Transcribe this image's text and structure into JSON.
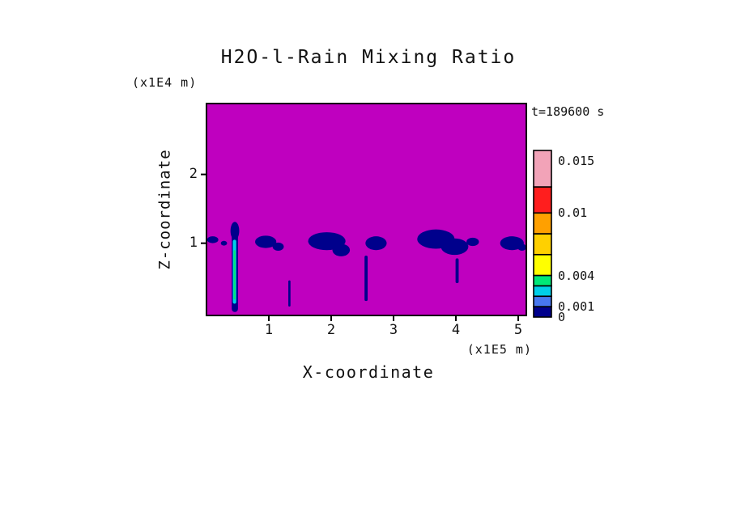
{
  "page": {
    "background": "#ffffff",
    "text_color": "#111111"
  },
  "chart_data": {
    "type": "heatmap",
    "title": "H2O-l-Rain Mixing Ratio",
    "time_label": "t=189600 s",
    "x_axis": {
      "label": "X-coordinate",
      "units": "(x1E5 m)",
      "ticks": [
        1,
        2,
        3,
        4,
        5
      ],
      "range": [
        0,
        5.13
      ]
    },
    "z_axis": {
      "label": "Z-coordinate",
      "units": "(x1E4 m)",
      "ticks": [
        1,
        2
      ],
      "range": [
        -0.05,
        3.03
      ]
    },
    "field_background_color": "#BF00BF",
    "cell_color": "#00008C",
    "colorbar": {
      "range": [
        0,
        0.016
      ],
      "segments": [
        {
          "from": 0,
          "to": 0.001,
          "color": "#00008C"
        },
        {
          "from": 0.001,
          "to": 0.002,
          "color": "#4878F0"
        },
        {
          "from": 0.002,
          "to": 0.003,
          "color": "#00CFE8"
        },
        {
          "from": 0.003,
          "to": 0.004,
          "color": "#00E878"
        },
        {
          "from": 0.004,
          "to": 0.006,
          "color": "#FFFF00"
        },
        {
          "from": 0.006,
          "to": 0.008,
          "color": "#FFD000"
        },
        {
          "from": 0.008,
          "to": 0.01,
          "color": "#FFA000"
        },
        {
          "from": 0.01,
          "to": 0.0125,
          "color": "#FF1E1E"
        },
        {
          "from": 0.0125,
          "to": 0.016,
          "color": "#F2A3B8"
        }
      ],
      "tick_labels": [
        {
          "value": 0.015,
          "label": "0.015"
        },
        {
          "value": 0.01,
          "label": "0.01"
        },
        {
          "value": 0.004,
          "label": "0.004"
        },
        {
          "value": 0.001,
          "label": "0.001"
        },
        {
          "value": 0,
          "label": "0"
        }
      ]
    },
    "features": [
      {
        "shape": "ellipse",
        "x": 0.1,
        "z": 1.05,
        "rx": 0.09,
        "rz": 0.05
      },
      {
        "shape": "ellipse",
        "x": 0.28,
        "z": 1.0,
        "rx": 0.05,
        "rz": 0.035
      },
      {
        "shape": "ellipse",
        "x": 0.455,
        "z": 1.18,
        "rx": 0.07,
        "rz": 0.13
      },
      {
        "shape": "rect",
        "x": 0.455,
        "z_top": 1.3,
        "z_bottom": 0.0,
        "w": 0.1
      },
      {
        "shape": "rect",
        "x": 0.45,
        "z_top": 1.05,
        "z_bottom": 0.12,
        "w": 0.055,
        "color": "#00CFE8"
      },
      {
        "shape": "rect",
        "x": 0.45,
        "z_top": 0.9,
        "z_bottom": 0.18,
        "w": 0.03,
        "color": "#00E878"
      },
      {
        "shape": "ellipse",
        "x": 0.95,
        "z": 1.02,
        "rx": 0.17,
        "rz": 0.09
      },
      {
        "shape": "ellipse",
        "x": 1.15,
        "z": 0.95,
        "rx": 0.09,
        "rz": 0.06
      },
      {
        "shape": "rect",
        "x": 1.33,
        "z_top": 0.46,
        "z_bottom": 0.08,
        "w": 0.035
      },
      {
        "shape": "ellipse",
        "x": 1.93,
        "z": 1.03,
        "rx": 0.3,
        "rz": 0.13
      },
      {
        "shape": "ellipse",
        "x": 2.16,
        "z": 0.9,
        "rx": 0.14,
        "rz": 0.09
      },
      {
        "shape": "ellipse",
        "x": 2.72,
        "z": 1.0,
        "rx": 0.17,
        "rz": 0.1
      },
      {
        "shape": "rect",
        "x": 2.56,
        "z_top": 0.82,
        "z_bottom": 0.16,
        "w": 0.05
      },
      {
        "shape": "ellipse",
        "x": 3.68,
        "z": 1.06,
        "rx": 0.3,
        "rz": 0.14
      },
      {
        "shape": "ellipse",
        "x": 3.98,
        "z": 0.95,
        "rx": 0.22,
        "rz": 0.12
      },
      {
        "shape": "rect",
        "x": 4.02,
        "z_top": 0.78,
        "z_bottom": 0.42,
        "w": 0.05
      },
      {
        "shape": "ellipse",
        "x": 4.27,
        "z": 1.02,
        "rx": 0.1,
        "rz": 0.06
      },
      {
        "shape": "ellipse",
        "x": 4.9,
        "z": 1.0,
        "rx": 0.19,
        "rz": 0.1
      },
      {
        "shape": "ellipse",
        "x": 5.06,
        "z": 0.94,
        "rx": 0.07,
        "rz": 0.05
      }
    ]
  }
}
